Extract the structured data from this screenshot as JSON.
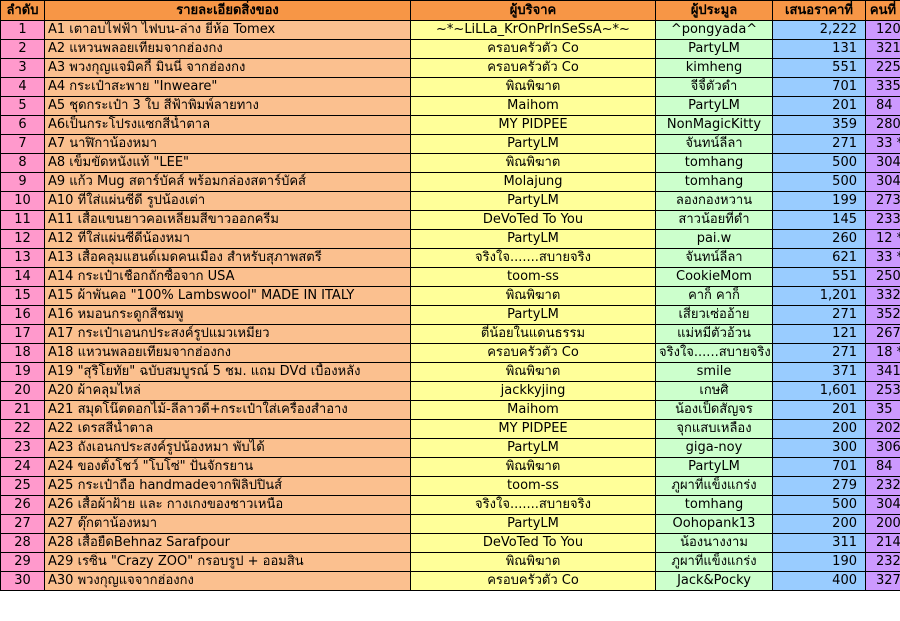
{
  "colors": {
    "header": "#f79646",
    "col_no": "#ff99cc",
    "col_item": "#fbc08f",
    "col_donor": "#ffff99",
    "col_bidder": "#ccffcc",
    "col_price": "#99ccff",
    "col_turn": "#cc99ff"
  },
  "headers": {
    "no": "ลำดับ",
    "item": "รายละเอียดสิ่งของ",
    "donor": "ผู้บริจาค",
    "bidder": "ผู้ประมูล",
    "price": "เสนอราคาที่",
    "turn": "คนที่"
  },
  "rows": [
    {
      "no": "1",
      "item": "A1 เตาอบไฟฟ้า ไฟบน-ล่าง ยี่ห้อ Tomex",
      "donor": "~*~LiLLa_KrOnPrInSeSsA~*~",
      "bidder": "^pongyada^",
      "price": "2,222",
      "turn": "120"
    },
    {
      "no": "2",
      "item": "A2 แหวนพลอยเทียมจากฮ่องกง",
      "donor": "ครอบครัวตัว Co",
      "bidder": "PartyLM",
      "price": "131",
      "turn": "321"
    },
    {
      "no": "3",
      "item": "A3 พวงกุญแจมิคกี้ มินนี่ จากฮ่องกง",
      "donor": "ครอบครัวตัว Co",
      "bidder": "kimheng",
      "price": "551",
      "turn": "225"
    },
    {
      "no": "4",
      "item": "A4 กระเป๋าสะพาย \"Inweare\"",
      "donor": "พิณพิฆาต",
      "bidder": "จีจี้ตัวดำ",
      "price": "701",
      "turn": "335"
    },
    {
      "no": "5",
      "item": "A5 ชุดกระเป๋า 3 ใบ สีฟ้าพิมพ์ลายทาง",
      "donor": "Maihom",
      "bidder": "PartyLM",
      "price": "201",
      "turn": "84"
    },
    {
      "no": "6",
      "item": "A6เป็นกระโปรงแซกสีน้ำตาล",
      "donor": "MY PIDPEE",
      "bidder": "NonMagicKitty",
      "price": "359",
      "turn": "280"
    },
    {
      "no": "7",
      "item": "A7 นาฬิกาน้องหมา",
      "donor": "PartyLM",
      "bidder": "จันทน์ลีลา",
      "price": "271",
      "turn": "33 *"
    },
    {
      "no": "8",
      "item": "A8 เข็มขัดหนังแท้ \"LEE\"",
      "donor": "พิณพิฆาต",
      "bidder": "tomhang",
      "price": "500",
      "turn": "304"
    },
    {
      "no": "9",
      "item": "A9 แก้ว Mug สตาร์บัคส์ พร้อมกล่องสตาร์บัคส์",
      "donor": "Molajung",
      "bidder": "tomhang",
      "price": "500",
      "turn": "304"
    },
    {
      "no": "10",
      "item": "A10 ที่ใส่แผ่นซีดี รูปน้องเต่า",
      "donor": "PartyLM",
      "bidder": "ลองกองหวาน",
      "price": "199",
      "turn": "273"
    },
    {
      "no": "11",
      "item": "A11 เสื้อแขนยาวคอเหลี่ยมสีขาวออกครีม",
      "donor": "DeVoTed To You",
      "bidder": "สาวน้อยที่ดำ",
      "price": "145",
      "turn": "233"
    },
    {
      "no": "12",
      "item": "A12  ที่ใส่แผ่นซีดีน้องหมา",
      "donor": "PartyLM",
      "bidder": "pai.w",
      "price": "260",
      "turn": "12 *"
    },
    {
      "no": "13",
      "item": "A13  เสื้อคลุมแฮนด์เมดคนเมือง  สำหรับสุภาพสตรี",
      "donor": "จริงใจ.......สบายจริง",
      "bidder": "จันทน์ลีลา",
      "price": "621",
      "turn": "33 *"
    },
    {
      "no": "14",
      "item": "A14 กระเป๋าเชือกถักซื้อจาก USA",
      "donor": "toom-ss",
      "bidder": "CookieMom",
      "price": "551",
      "turn": "250"
    },
    {
      "no": "15",
      "item": "A15 ผ้าพันคอ \"100% Lambswool\" MADE IN ITALY",
      "donor": "พิณพิฆาต",
      "bidder": "คาก็ คาก็",
      "price": "1,201",
      "turn": "332"
    },
    {
      "no": "16",
      "item": "A16 หมอนกระดูกสีชมพู",
      "donor": "PartyLM",
      "bidder": "เสี่ยวเซ่ออ้าย",
      "price": "271",
      "turn": "352"
    },
    {
      "no": "17",
      "item": "A17 กระเป๋าเอนกประสงค์รูปแมวเหมียว",
      "donor": "ตี๋น้อยในแดนธรรม",
      "bidder": "แม่หมีตัวอ้วน",
      "price": "121",
      "turn": "267"
    },
    {
      "no": "18",
      "item": "A18  แหวนพลอยเทียมจากฮ่องกง",
      "donor": "ครอบครัวตัว Co",
      "bidder": "จริงใจ......สบายจริง",
      "price": "271",
      "turn": "18 *"
    },
    {
      "no": "19",
      "item": "A19 \"สุริโยทัย\" ฉบับสมบูรณ์ 5 ชม. แถม DVd เบื้องหลัง",
      "donor": "พิณพิฆาต",
      "bidder": "smile",
      "price": "371",
      "turn": "341"
    },
    {
      "no": "20",
      "item": "A20 ผ้าคลุมไหล่",
      "donor": "jackkyjing",
      "bidder": "เกษศิ",
      "price": "1,601",
      "turn": "253"
    },
    {
      "no": "21",
      "item": "A21  สมุดโน๊ตดอกไม้-ลีลาวดี+กระเป๋าใส่เครื่องสำอาง",
      "donor": "Maihom",
      "bidder": "น้องเป็ดสัญจร",
      "price": "201",
      "turn": "35"
    },
    {
      "no": "22",
      "item": "A22  เดรสสีน้ำตาล",
      "donor": "MY PIDPEE",
      "bidder": "จุกแสบเหลือง",
      "price": "200",
      "turn": "202"
    },
    {
      "no": "23",
      "item": "A23  ถังเอนกประสงค์รูปน้องหมา พับได้",
      "donor": "PartyLM",
      "bidder": "giga-noy",
      "price": "300",
      "turn": "306"
    },
    {
      "no": "24",
      "item": "A24 ของตั้งโชว์ \"โบโซ่\" ปั่นจักรยาน",
      "donor": "พิณพิฆาต",
      "bidder": "PartyLM",
      "price": "701",
      "turn": "84"
    },
    {
      "no": "25",
      "item": "A25 กระเป๋าถือ handmadeจากฟิลิปปินส์",
      "donor": "toom-ss",
      "bidder": "ภูผาที่แข็งแกร่ง",
      "price": "279",
      "turn": "232"
    },
    {
      "no": "26",
      "item": "A26  เสื้อผ้าฝ้าย  และ กางเกงของชาวเหนือ",
      "donor": "จริงใจ.......สบายจริง",
      "bidder": "tomhang",
      "price": "500",
      "turn": "304"
    },
    {
      "no": "27",
      "item": "A27  ตุ๊กตาน้องหมา",
      "donor": "PartyLM",
      "bidder": "Oohopank13",
      "price": "200",
      "turn": "200"
    },
    {
      "no": "28",
      "item": "A28 เสื้อยืดBehnaz Sarafpour",
      "donor": "DeVoTed To You",
      "bidder": "น้องนางงาม",
      "price": "311",
      "turn": "214"
    },
    {
      "no": "29",
      "item": "A29 เรซิ่น \"Crazy ZOO\" กรอบรูป + ออมสิน",
      "donor": "พิณพิฆาต",
      "bidder": "ภูผาที่แข็งแกร่ง",
      "price": "190",
      "turn": "232"
    },
    {
      "no": "30",
      "item": "A30 พวงกุญแจจากฮ่องกง",
      "donor": "ครอบครัวตัว Co",
      "bidder": "Jack&Pocky",
      "price": "400",
      "turn": "327"
    }
  ]
}
